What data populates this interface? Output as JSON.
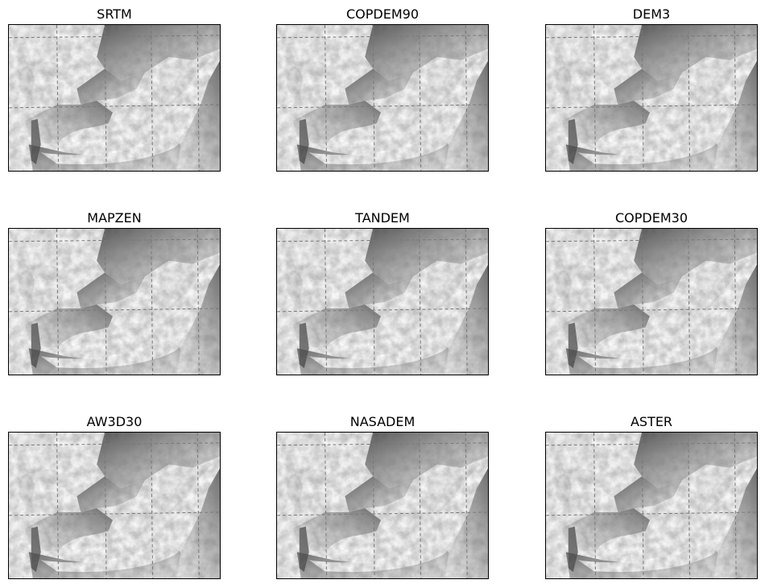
{
  "figure": {
    "panels": [
      {
        "title": "SRTM"
      },
      {
        "title": "COPDEM90"
      },
      {
        "title": "DEM3"
      },
      {
        "title": "MAPZEN"
      },
      {
        "title": "TANDEM"
      },
      {
        "title": "COPDEM30"
      },
      {
        "title": "AW3D30"
      },
      {
        "title": "NASADEM"
      },
      {
        "title": "ASTER"
      }
    ]
  },
  "colors": {
    "gridline": "#777777",
    "frame": "#000000",
    "valley_floor": "#ffffff",
    "shadow": "#3a3a3a"
  }
}
